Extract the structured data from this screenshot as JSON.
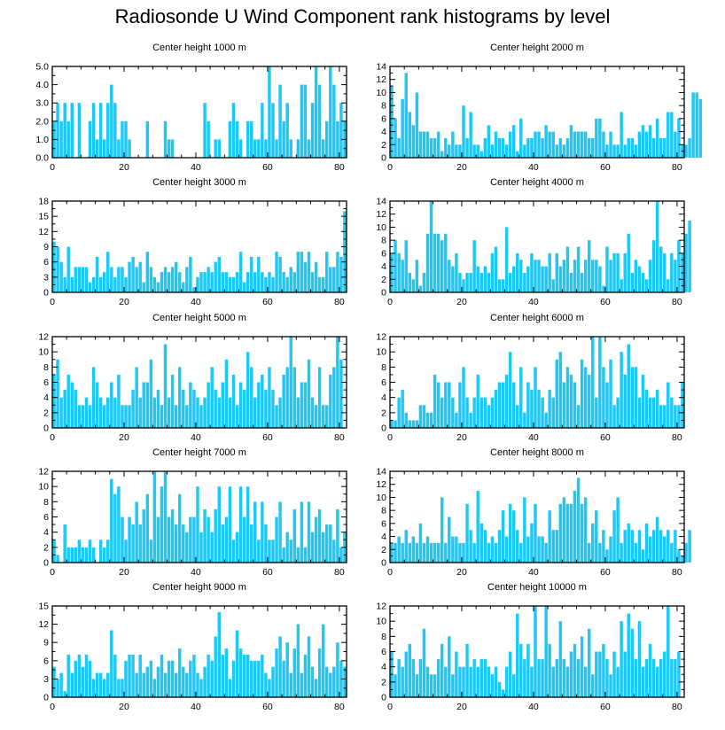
{
  "title": "Radiosonde U Wind Component rank histograms by level",
  "bar_color": "#1ec8f5",
  "chart_data": [
    {
      "type": "bar",
      "title": "Center height 1000 m",
      "xlim": [
        0,
        82
      ],
      "ylim": [
        0,
        5
      ],
      "yticks": [
        0,
        1,
        2,
        3,
        4,
        5
      ],
      "ytick_labels": [
        "0.0",
        "1.0",
        "2.0",
        "3.0",
        "4.0",
        "5.0"
      ],
      "xticks": [
        0,
        20,
        40,
        60,
        80
      ],
      "xtick_labels": [
        "0",
        "20",
        "40",
        "60",
        "80"
      ],
      "values": [
        2,
        3,
        2,
        3,
        2,
        3,
        0,
        3,
        0,
        0,
        2,
        3,
        1,
        3,
        1,
        3,
        4,
        3,
        1,
        2,
        2,
        1,
        0,
        0,
        0,
        0,
        2,
        0,
        0,
        0,
        0,
        2,
        1,
        1,
        0,
        0,
        0,
        0,
        0,
        0,
        0,
        0,
        3,
        2,
        0,
        1,
        1,
        0,
        0,
        2,
        3,
        2,
        1,
        0,
        2,
        2,
        1,
        1,
        3,
        1,
        5,
        3,
        1,
        4,
        2,
        3,
        1,
        0,
        1,
        4,
        4,
        1,
        3,
        5,
        4,
        1,
        2,
        5,
        4,
        2,
        3,
        2
      ]
    },
    {
      "type": "bar",
      "title": "Center height 2000 m",
      "xlim": [
        0,
        82
      ],
      "ylim": [
        0,
        14
      ],
      "yticks": [
        0,
        2,
        4,
        6,
        8,
        10,
        12,
        14
      ],
      "ytick_labels": [
        "0",
        "2",
        "4",
        "6",
        "8",
        "10",
        "12",
        "14"
      ],
      "xticks": [
        0,
        20,
        40,
        60,
        80
      ],
      "xtick_labels": [
        "0",
        "20",
        "40",
        "60",
        "80"
      ],
      "values": [
        11,
        6,
        3,
        9,
        13,
        7,
        5,
        10,
        4,
        4,
        4,
        3,
        3,
        4,
        1,
        3,
        2,
        4,
        2,
        2,
        8,
        3,
        7,
        2,
        2,
        1,
        3,
        5,
        2,
        4,
        3,
        3,
        2,
        4,
        5,
        1,
        6,
        2,
        3,
        3,
        4,
        4,
        3,
        5,
        4,
        4,
        2,
        3,
        2,
        3,
        5,
        4,
        4,
        4,
        4,
        3,
        3,
        6,
        6,
        4,
        2,
        4,
        2,
        2,
        7,
        2,
        3,
        3,
        2,
        4,
        5,
        4,
        5,
        3,
        6,
        3,
        3,
        7,
        7,
        4,
        6,
        2,
        2,
        3,
        10,
        10,
        9
      ]
    },
    {
      "type": "bar",
      "title": "Center height 3000 m",
      "xlim": [
        0,
        82
      ],
      "ylim": [
        0,
        18
      ],
      "yticks": [
        0,
        3,
        6,
        9,
        12,
        15,
        18
      ],
      "ytick_labels": [
        "0",
        "3",
        "6",
        "9",
        "12",
        "15",
        "18"
      ],
      "xticks": [
        0,
        20,
        40,
        60,
        80
      ],
      "xtick_labels": [
        "0",
        "20",
        "40",
        "60",
        "80"
      ],
      "values": [
        10,
        9,
        6,
        3,
        9,
        3,
        5,
        5,
        5,
        5,
        2,
        3,
        7,
        3,
        4,
        8,
        5,
        3,
        5,
        5,
        3,
        6,
        7,
        5,
        6,
        2,
        8,
        5,
        3,
        2,
        4,
        5,
        4,
        5,
        6,
        4,
        2,
        5,
        7,
        1,
        3,
        4,
        4,
        5,
        4,
        6,
        7,
        4,
        4,
        3,
        3,
        4,
        8,
        2,
        4,
        7,
        4,
        7,
        4,
        3,
        4,
        3,
        8,
        7,
        4,
        3,
        5,
        4,
        8,
        8,
        6,
        8,
        4,
        6,
        3,
        3,
        8,
        5,
        5,
        8,
        7,
        16
      ]
    },
    {
      "type": "bar",
      "title": "Center height 4000 m",
      "xlim": [
        0,
        82
      ],
      "ylim": [
        0,
        14
      ],
      "yticks": [
        0,
        2,
        4,
        6,
        8,
        10,
        12,
        14
      ],
      "ytick_labels": [
        "0",
        "2",
        "4",
        "6",
        "8",
        "10",
        "12",
        "14"
      ],
      "xticks": [
        0,
        20,
        40,
        60,
        80
      ],
      "xtick_labels": [
        "0",
        "20",
        "40",
        "60",
        "80"
      ],
      "values": [
        6,
        8,
        6,
        5,
        8,
        3,
        2,
        5,
        1,
        3,
        9,
        14,
        9,
        9,
        8,
        9,
        5,
        4,
        6,
        3,
        2,
        3,
        3,
        8,
        4,
        3,
        4,
        3,
        6,
        7,
        2,
        2,
        10,
        3,
        4,
        6,
        5,
        3,
        4,
        6,
        5,
        5,
        4,
        4,
        6,
        2,
        6,
        4,
        5,
        7,
        3,
        5,
        7,
        3,
        5,
        8,
        5,
        5,
        4,
        1,
        7,
        5,
        6,
        6,
        2,
        6,
        9,
        3,
        5,
        4,
        3,
        2,
        5,
        8,
        14,
        7,
        6,
        2,
        6,
        5,
        8,
        6,
        9,
        11
      ]
    },
    {
      "type": "bar",
      "title": "Center height 5000 m",
      "xlim": [
        0,
        82
      ],
      "ylim": [
        0,
        12
      ],
      "yticks": [
        0,
        2,
        4,
        6,
        8,
        10,
        12
      ],
      "ytick_labels": [
        "0",
        "2",
        "4",
        "6",
        "8",
        "10",
        "12"
      ],
      "xticks": [
        0,
        20,
        40,
        60,
        80
      ],
      "xtick_labels": [
        "0",
        "20",
        "40",
        "60",
        "80"
      ],
      "values": [
        7,
        9,
        4,
        5,
        7,
        6,
        5,
        3,
        3,
        4,
        3,
        8,
        6,
        4,
        3,
        4,
        6,
        4,
        7,
        3,
        3,
        3,
        5,
        8,
        4,
        6,
        6,
        9,
        4,
        5,
        3,
        11,
        4,
        7,
        3,
        8,
        5,
        3,
        6,
        5,
        4,
        3,
        4,
        6,
        8,
        5,
        4,
        6,
        9,
        4,
        7,
        3,
        6,
        5,
        10,
        8,
        4,
        6,
        7,
        5,
        8,
        5,
        3,
        4,
        7,
        8,
        12,
        8,
        4,
        6,
        6,
        9,
        4,
        3,
        8,
        3,
        3,
        7,
        8,
        12,
        9
      ]
    },
    {
      "type": "bar",
      "title": "Center height 6000 m",
      "xlim": [
        0,
        82
      ],
      "ylim": [
        0,
        12
      ],
      "yticks": [
        0,
        2,
        4,
        6,
        8,
        10,
        12
      ],
      "ytick_labels": [
        "0",
        "2",
        "4",
        "6",
        "8",
        "10",
        "12"
      ],
      "xticks": [
        0,
        20,
        40,
        60,
        80
      ],
      "xtick_labels": [
        "0",
        "20",
        "40",
        "60",
        "80"
      ],
      "values": [
        1,
        1,
        4,
        5,
        2,
        1,
        1,
        1,
        3,
        3,
        2,
        2,
        7,
        6,
        4,
        6,
        6,
        4,
        2,
        6,
        8,
        4,
        2,
        4,
        7,
        4,
        4,
        3,
        4,
        5,
        6,
        6,
        7,
        10,
        6,
        3,
        8,
        2,
        6,
        5,
        8,
        5,
        4,
        2,
        5,
        4,
        9,
        10,
        6,
        8,
        7,
        6,
        3,
        9,
        8,
        7,
        12,
        4,
        12,
        8,
        6,
        9,
        3,
        4,
        10,
        7,
        11,
        8,
        8,
        4,
        7,
        5,
        4,
        4,
        5,
        3,
        3,
        6,
        4,
        3,
        3,
        6
      ]
    },
    {
      "type": "bar",
      "title": "Center height 7000 m",
      "xlim": [
        0,
        82
      ],
      "ylim": [
        0,
        12
      ],
      "yticks": [
        0,
        2,
        4,
        6,
        8,
        10,
        12
      ],
      "ytick_labels": [
        "0",
        "2",
        "4",
        "6",
        "8",
        "10",
        "12"
      ],
      "xticks": [
        0,
        20,
        40,
        60,
        80
      ],
      "xtick_labels": [
        "0",
        "20",
        "40",
        "60",
        "80"
      ],
      "values": [
        3,
        1,
        0,
        5,
        2,
        2,
        2,
        3,
        2,
        2,
        3,
        2,
        0,
        3,
        2,
        3,
        11,
        9,
        10,
        6,
        3,
        6,
        5,
        8,
        5,
        7,
        9,
        3,
        12,
        6,
        10,
        12,
        6,
        7,
        5,
        9,
        5,
        4,
        6,
        6,
        10,
        4,
        7,
        6,
        4,
        7,
        10,
        5,
        6,
        10,
        3,
        4,
        10,
        6,
        10,
        5,
        8,
        3,
        8,
        5,
        3,
        3,
        6,
        8,
        2,
        4,
        3,
        7,
        2,
        8,
        2,
        8,
        4,
        6,
        7,
        4,
        5,
        5,
        3,
        7,
        2,
        4
      ]
    },
    {
      "type": "bar",
      "title": "Center height 8000 m",
      "xlim": [
        0,
        82
      ],
      "ylim": [
        0,
        14
      ],
      "yticks": [
        0,
        2,
        4,
        6,
        8,
        10,
        12,
        14
      ],
      "ytick_labels": [
        "0",
        "2",
        "4",
        "6",
        "8",
        "10",
        "12",
        "14"
      ],
      "xticks": [
        0,
        20,
        40,
        60,
        80
      ],
      "xtick_labels": [
        "0",
        "20",
        "40",
        "60",
        "80"
      ],
      "values": [
        3,
        3,
        4,
        3,
        5,
        3,
        4,
        3,
        6,
        3,
        4,
        3,
        3,
        3,
        10,
        3,
        7,
        4,
        4,
        3,
        3,
        9,
        5,
        3,
        11,
        6,
        5,
        3,
        4,
        3,
        5,
        8,
        4,
        9,
        8,
        5,
        3,
        10,
        4,
        6,
        9,
        4,
        4,
        3,
        8,
        5,
        5,
        9,
        10,
        9,
        9,
        11,
        13,
        9,
        10,
        3,
        6,
        8,
        3,
        5,
        2,
        4,
        8,
        10,
        3,
        5,
        6,
        5,
        3,
        5,
        2,
        6,
        4,
        5,
        7,
        5,
        4,
        5,
        3,
        5,
        2,
        1,
        3,
        5
      ]
    },
    {
      "type": "bar",
      "title": "Center height 9000 m",
      "xlim": [
        0,
        82
      ],
      "ylim": [
        0,
        15
      ],
      "yticks": [
        0,
        3,
        6,
        9,
        12,
        15
      ],
      "ytick_labels": [
        "0",
        "3",
        "6",
        "9",
        "12",
        "15"
      ],
      "xticks": [
        0,
        20,
        40,
        60,
        80
      ],
      "xtick_labels": [
        "0",
        "20",
        "40",
        "60",
        "80"
      ],
      "values": [
        5,
        3,
        4,
        1,
        7,
        4,
        6,
        7,
        5,
        7,
        6,
        3,
        4,
        4,
        3,
        4,
        11,
        7,
        3,
        3,
        6,
        7,
        7,
        4,
        7,
        4,
        5,
        6,
        3,
        5,
        7,
        4,
        6,
        6,
        4,
        8,
        5,
        4,
        6,
        7,
        4,
        3,
        5,
        7,
        6,
        10,
        14,
        7,
        8,
        3,
        6,
        11,
        8,
        7,
        7,
        6,
        6,
        6,
        7,
        4,
        3,
        5,
        8,
        10,
        6,
        9,
        4,
        8,
        12,
        4,
        7,
        10,
        5,
        3,
        8,
        12,
        5,
        4,
        5,
        9,
        6,
        5
      ]
    },
    {
      "type": "bar",
      "title": "Center height 10000 m",
      "xlim": [
        0,
        82
      ],
      "ylim": [
        0,
        12
      ],
      "yticks": [
        0,
        2,
        4,
        6,
        8,
        10,
        12
      ],
      "ytick_labels": [
        "0",
        "2",
        "4",
        "6",
        "8",
        "10",
        "12"
      ],
      "xticks": [
        0,
        20,
        40,
        60,
        80
      ],
      "xtick_labels": [
        "0",
        "20",
        "40",
        "60",
        "80"
      ],
      "values": [
        6,
        3,
        5,
        4,
        6,
        7,
        5,
        3,
        5,
        9,
        4,
        3,
        3,
        5,
        7,
        4,
        8,
        3,
        6,
        4,
        4,
        7,
        4,
        5,
        4,
        5,
        5,
        4,
        3,
        4,
        2,
        1,
        4,
        6,
        3,
        11,
        7,
        5,
        7,
        4,
        12,
        5,
        5,
        12,
        7,
        4,
        5,
        10,
        5,
        4,
        6,
        7,
        5,
        8,
        4,
        9,
        3,
        6,
        6,
        7,
        5,
        3,
        6,
        4,
        10,
        6,
        11,
        9,
        5,
        10,
        4,
        5,
        7,
        5,
        4,
        5,
        6,
        12,
        5,
        5,
        6
      ]
    }
  ]
}
